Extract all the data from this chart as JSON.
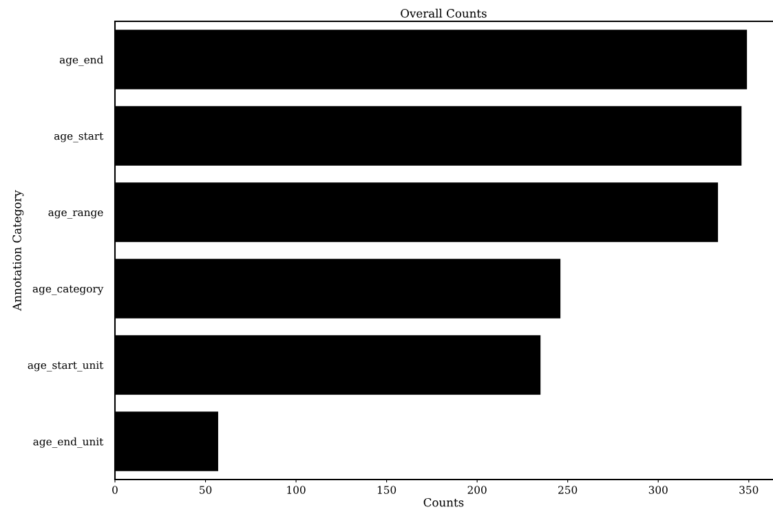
{
  "chart_data": {
    "type": "bar",
    "orientation": "horizontal",
    "title": "Overall Counts",
    "xlabel": "Counts",
    "ylabel": "Annotation Category",
    "categories": [
      "age_end",
      "age_start",
      "age_range",
      "age_category",
      "age_start_unit",
      "age_end_unit"
    ],
    "values": [
      349,
      346,
      333,
      246,
      235,
      57
    ],
    "color": "#000000",
    "xlim": [
      0,
      363
    ],
    "xticks": [
      0,
      50,
      100,
      150,
      200,
      250,
      300,
      350
    ],
    "grid": false,
    "legend": false
  }
}
